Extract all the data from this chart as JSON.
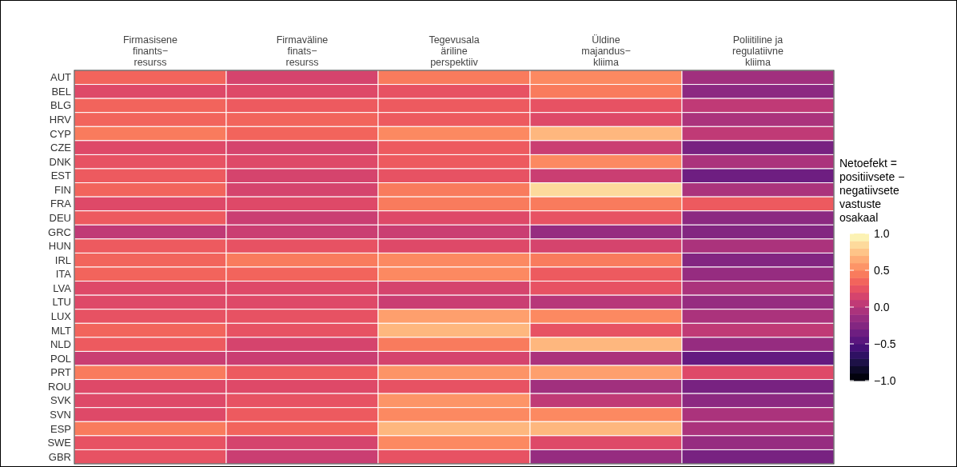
{
  "chart_data": {
    "type": "heatmap",
    "categories": [
      "Firmasisene\nfinants−\nresurss",
      "Firmaväline\nfinats−\nresurss",
      "Tegevusala\näriline\nperspektiiv",
      "Üldine\nmajandus−\nkliima",
      "Poliitiline ja\nregulatiivne\nkliima"
    ],
    "y_categories": [
      "AUT",
      "BEL",
      "BLG",
      "HRV",
      "CYP",
      "CZE",
      "DNK",
      "EST",
      "FIN",
      "FRA",
      "DEU",
      "GRC",
      "HUN",
      "IRL",
      "ITA",
      "LVA",
      "LTU",
      "LUX",
      "MLT",
      "NLD",
      "POL",
      "PRT",
      "ROU",
      "SVK",
      "SVN",
      "ESP",
      "SWE",
      "GBR"
    ],
    "cells": [
      [
        0.35,
        0.15,
        0.45,
        0.5,
        -0.1
      ],
      [
        0.2,
        0.2,
        0.25,
        0.45,
        -0.2
      ],
      [
        0.35,
        0.3,
        0.3,
        0.25,
        0.05
      ],
      [
        0.35,
        0.35,
        0.3,
        0.2,
        -0.05
      ],
      [
        0.45,
        0.35,
        0.5,
        0.7,
        0.05
      ],
      [
        0.2,
        0.15,
        0.3,
        0.1,
        -0.3
      ],
      [
        0.25,
        0.2,
        0.3,
        0.5,
        -0.05
      ],
      [
        0.3,
        0.15,
        0.25,
        0.1,
        -0.35
      ],
      [
        0.35,
        0.15,
        0.45,
        0.85,
        -0.05
      ],
      [
        0.2,
        0.2,
        0.45,
        0.45,
        0.3
      ],
      [
        0.3,
        0.1,
        0.2,
        0.25,
        -0.2
      ],
      [
        0.05,
        0.1,
        0.1,
        -0.15,
        -0.25
      ],
      [
        0.3,
        0.25,
        0.2,
        0.15,
        -0.05
      ],
      [
        0.35,
        0.45,
        0.5,
        0.45,
        -0.25
      ],
      [
        0.35,
        0.35,
        0.5,
        0.3,
        -0.15
      ],
      [
        0.2,
        0.2,
        0.15,
        0.25,
        -0.05
      ],
      [
        0.2,
        0.2,
        0.1,
        0.0,
        -0.15
      ],
      [
        0.25,
        0.25,
        0.6,
        0.5,
        -0.05
      ],
      [
        0.35,
        0.25,
        0.7,
        0.25,
        0.05
      ],
      [
        0.3,
        0.15,
        0.45,
        0.7,
        -0.15
      ],
      [
        0.1,
        0.1,
        0.15,
        -0.05,
        -0.4
      ],
      [
        0.45,
        0.3,
        0.55,
        0.6,
        0.2
      ],
      [
        0.2,
        0.2,
        0.25,
        -0.1,
        -0.3
      ],
      [
        0.2,
        0.25,
        0.55,
        0.05,
        -0.2
      ],
      [
        0.2,
        0.3,
        0.5,
        0.5,
        -0.05
      ],
      [
        0.45,
        0.35,
        0.7,
        0.7,
        -0.05
      ],
      [
        0.25,
        0.15,
        0.5,
        0.2,
        -0.15
      ],
      [
        0.25,
        0.1,
        0.25,
        -0.15,
        -0.3
      ]
    ],
    "clabel": "Netoefekt =\npositiivsete −\nnegatiivsete\nvastuste\nosakaal",
    "clim": [
      -1,
      1
    ],
    "cticks": [
      {
        "value": 1,
        "label": "1.0"
      },
      {
        "value": 0.5,
        "label": "0.5"
      },
      {
        "value": 0,
        "label": "0.0"
      },
      {
        "value": -0.5,
        "label": "−0.5"
      },
      {
        "value": -1,
        "label": "−1.0"
      }
    ]
  }
}
